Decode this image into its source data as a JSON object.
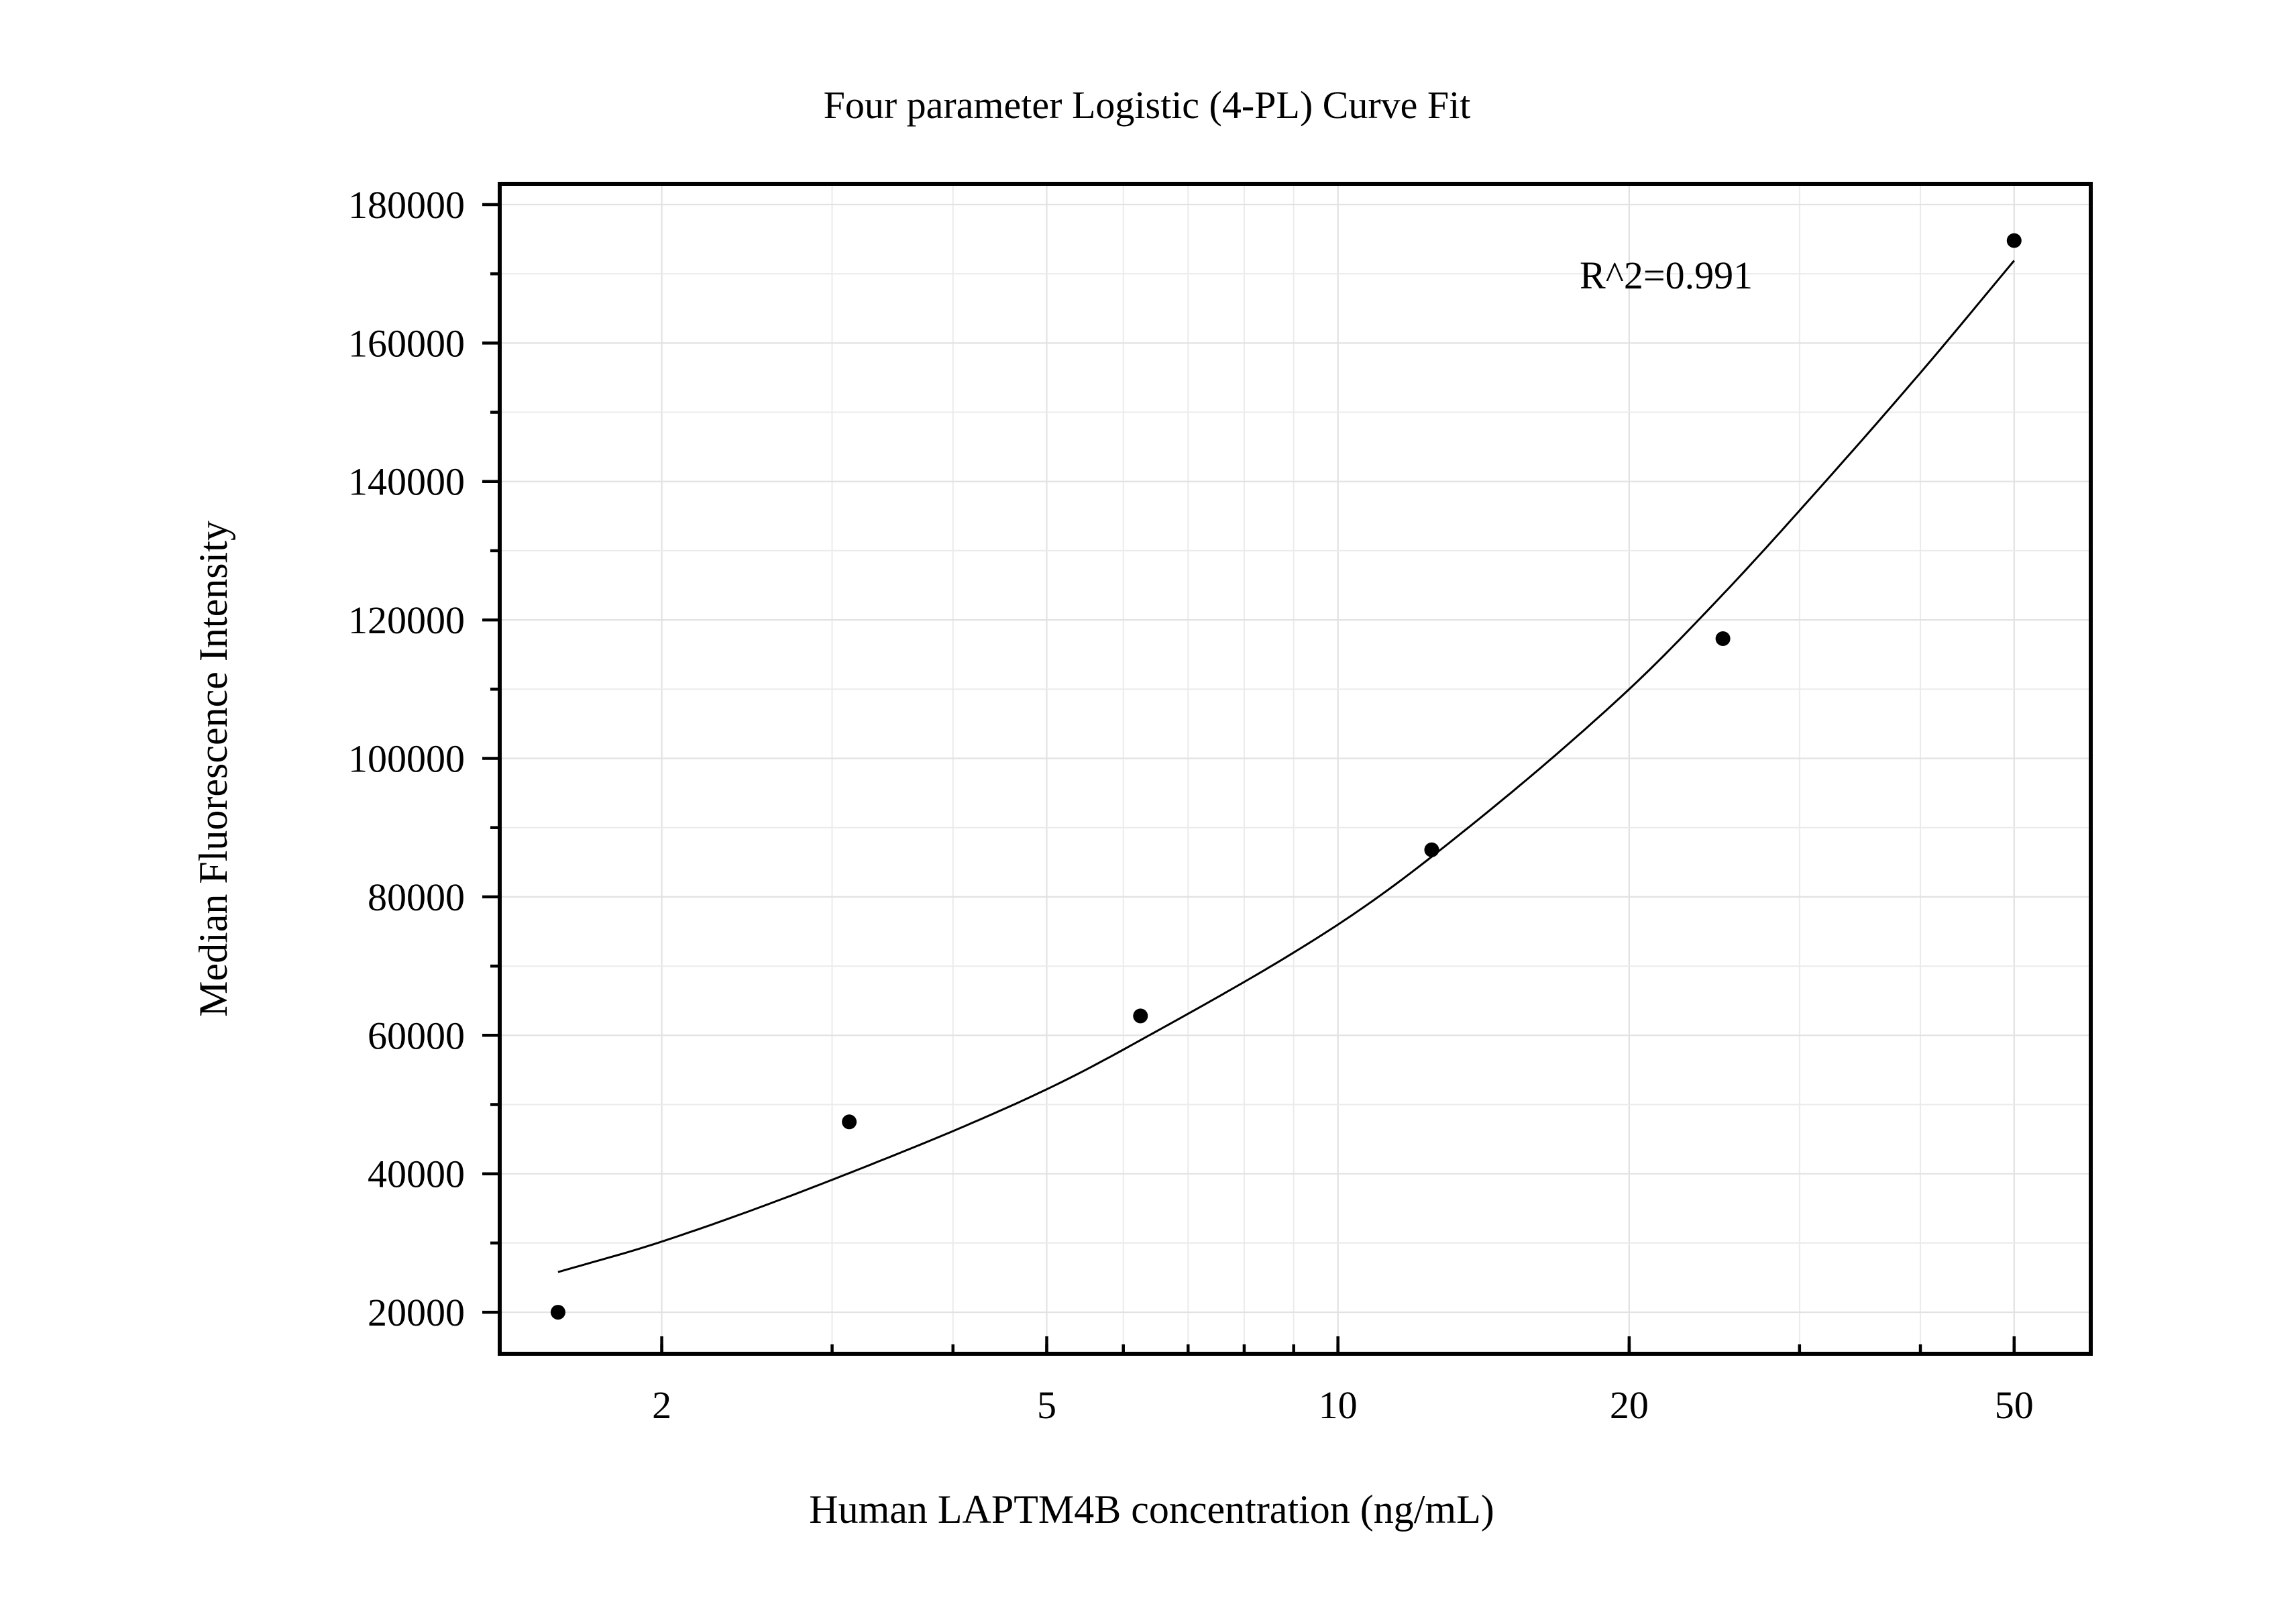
{
  "chart_data": {
    "type": "scatter",
    "title": "Four parameter Logistic (4-PL) Curve Fit",
    "xlabel": "Human LAPTM4B concentration (ng/mL)",
    "ylabel": "Median Fluorescence Intensity",
    "x_scale": "log",
    "xlim": [
      1.36,
      60
    ],
    "ylim": [
      14000,
      183000
    ],
    "x_ticks": [
      2,
      5,
      10,
      20,
      50
    ],
    "x_tick_labels": [
      "2",
      "5",
      "10",
      "20",
      "50"
    ],
    "y_ticks": [
      20000,
      40000,
      60000,
      80000,
      100000,
      120000,
      140000,
      160000,
      180000
    ],
    "y_tick_labels": [
      "20000",
      "40000",
      "60000",
      "80000",
      "100000",
      "120000",
      "140000",
      "160000",
      "180000"
    ],
    "grid": true,
    "series": [
      {
        "type": "scatter",
        "x": [
          1.5625,
          3.125,
          6.25,
          12.5,
          25,
          50
        ],
        "y": [
          20000,
          47500,
          62800,
          86800,
          117300,
          174800
        ]
      },
      {
        "type": "line",
        "x": [
          1.5625,
          2,
          3.125,
          5,
          6.25,
          10,
          12.5,
          20,
          25,
          30,
          40,
          50
        ],
        "y": [
          25800,
          30200,
          40100,
          52200,
          59300,
          76000,
          85800,
          110000,
          123700,
          135800,
          155700,
          171900
        ]
      }
    ],
    "annotations": [
      {
        "text": "R^2=0.991"
      }
    ],
    "color": "#000000"
  }
}
